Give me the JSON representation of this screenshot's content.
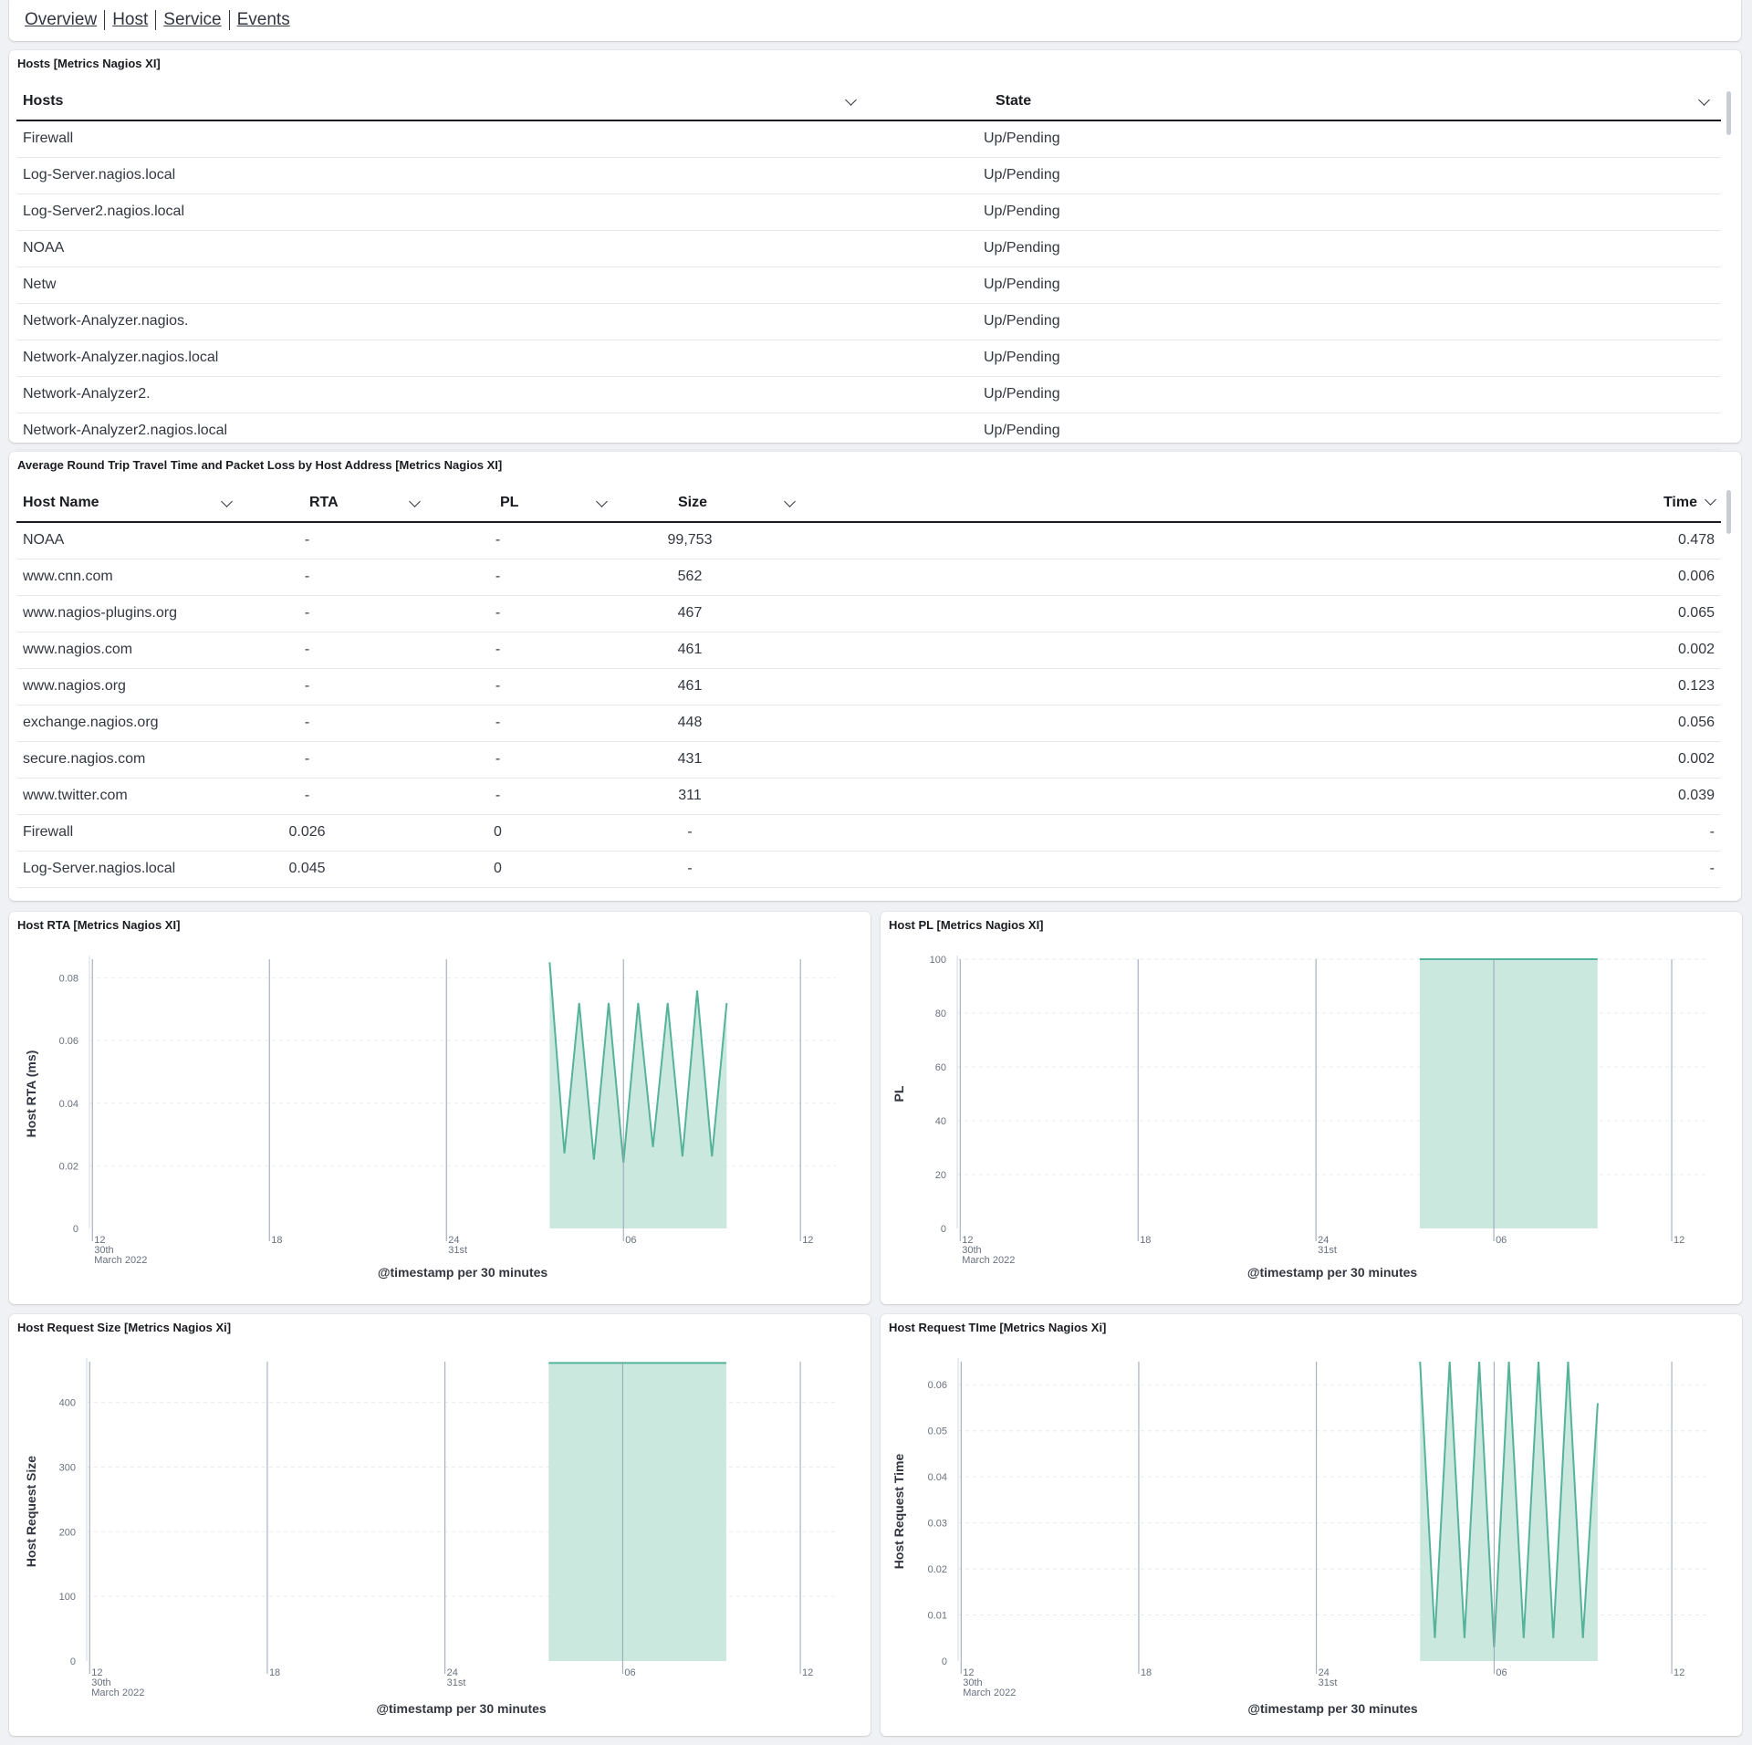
{
  "nav": {
    "links": [
      "Overview",
      "Host",
      "Service",
      "Events"
    ]
  },
  "hosts_panel": {
    "title": "Hosts [Metrics Nagios XI]",
    "columns": [
      "Hosts",
      "State"
    ],
    "rows": [
      [
        "Firewall",
        "Up/Pending"
      ],
      [
        "Log-Server.nagios.local",
        "Up/Pending"
      ],
      [
        "Log-Server2.nagios.local",
        "Up/Pending"
      ],
      [
        "NOAA",
        "Up/Pending"
      ],
      [
        "Netw",
        "Up/Pending"
      ],
      [
        "Network-Analyzer.nagios.",
        "Up/Pending"
      ],
      [
        "Network-Analyzer.nagios.local",
        "Up/Pending"
      ],
      [
        "Network-Analyzer2.",
        "Up/Pending"
      ],
      [
        "Network-Analyzer2.nagios.local",
        "Up/Pending"
      ]
    ]
  },
  "rta_panel": {
    "title": "Average Round Trip Travel Time and Packet Loss by Host Address [Metrics Nagios XI]",
    "columns": [
      "Host Name",
      "RTA",
      "PL",
      "Size",
      "Time"
    ],
    "rows": [
      [
        "NOAA",
        "-",
        "-",
        "99,753",
        "0.478"
      ],
      [
        "www.cnn.com",
        "-",
        "-",
        "562",
        "0.006"
      ],
      [
        "www.nagios-plugins.org",
        "-",
        "-",
        "467",
        "0.065"
      ],
      [
        "www.nagios.com",
        "-",
        "-",
        "461",
        "0.002"
      ],
      [
        "www.nagios.org",
        "-",
        "-",
        "461",
        "0.123"
      ],
      [
        "exchange.nagios.org",
        "-",
        "-",
        "448",
        "0.056"
      ],
      [
        "secure.nagios.com",
        "-",
        "-",
        "431",
        "0.002"
      ],
      [
        "www.twitter.com",
        "-",
        "-",
        "311",
        "0.039"
      ],
      [
        "Firewall",
        "0.026",
        "0",
        "-",
        "-"
      ],
      [
        "Log-Server.nagios.local",
        "0.045",
        "0",
        "-",
        "-"
      ]
    ]
  },
  "theme": {
    "series_color": "#54b399",
    "fill_color": "#cbe8df"
  },
  "chart_data": [
    {
      "type": "area",
      "title": "Host RTA [Metrics Nagios XI]",
      "xlabel": "@timestamp per 30 minutes",
      "ylabel": "Host RTA (ms)",
      "x_domain_hours": [
        -0.1,
        25.2
      ],
      "x_ticks": [
        {
          "h": 0,
          "label": "12",
          "sub": [
            "30th",
            "March 2022"
          ]
        },
        {
          "h": 6,
          "label": "18",
          "sub": []
        },
        {
          "h": 12,
          "label": "24",
          "sub": [
            "31st"
          ]
        },
        {
          "h": 18,
          "label": "06",
          "sub": []
        },
        {
          "h": 24,
          "label": "12",
          "sub": []
        }
      ],
      "ylim": [
        0,
        0.086
      ],
      "y_ticks": [
        0,
        0.02,
        0.04,
        0.06,
        0.08
      ],
      "y_tick_labels": [
        "0",
        "0.02",
        "0.04",
        "0.06",
        "0.08"
      ],
      "series": [
        {
          "x": [
            15.5,
            16,
            16.5,
            17,
            17.5,
            18,
            18.5,
            19,
            19.5,
            20,
            20.5,
            21,
            21.5
          ],
          "y": [
            0.085,
            0.024,
            0.072,
            0.022,
            0.072,
            0.021,
            0.072,
            0.026,
            0.072,
            0.023,
            0.076,
            0.023,
            0.072
          ]
        }
      ]
    },
    {
      "type": "area",
      "title": "Host PL [Metrics Nagios XI]",
      "xlabel": "@timestamp per 30 minutes",
      "ylabel": "PL",
      "x_domain_hours": [
        -0.1,
        25.2
      ],
      "x_ticks": [
        {
          "h": 0,
          "label": "12",
          "sub": [
            "30th",
            "March 2022"
          ]
        },
        {
          "h": 6,
          "label": "18",
          "sub": []
        },
        {
          "h": 12,
          "label": "24",
          "sub": [
            "31st"
          ]
        },
        {
          "h": 18,
          "label": "06",
          "sub": []
        },
        {
          "h": 24,
          "label": "12",
          "sub": []
        }
      ],
      "ylim": [
        0,
        100
      ],
      "y_ticks": [
        0,
        20,
        40,
        60,
        80,
        100
      ],
      "y_tick_labels": [
        "0",
        "20",
        "40",
        "60",
        "80",
        "100"
      ],
      "series": [
        {
          "x": [
            15.5,
            16,
            16.5,
            17,
            17.5,
            18,
            18.5,
            19,
            19.5,
            20,
            20.5,
            21,
            21.5
          ],
          "y": [
            100,
            100,
            100,
            100,
            100,
            100,
            100,
            100,
            100,
            100,
            100,
            100,
            100
          ]
        }
      ]
    },
    {
      "type": "area",
      "title": "Host Request Size [Metrics Nagios Xi]",
      "xlabel": "@timestamp per 30 minutes",
      "ylabel": "Host Request Size",
      "x_domain_hours": [
        -0.1,
        25.2
      ],
      "x_ticks": [
        {
          "h": 0,
          "label": "12",
          "sub": [
            "30th",
            "March 2022"
          ]
        },
        {
          "h": 6,
          "label": "18",
          "sub": []
        },
        {
          "h": 12,
          "label": "24",
          "sub": [
            "31st"
          ]
        },
        {
          "h": 18,
          "label": "06",
          "sub": []
        },
        {
          "h": 24,
          "label": "12",
          "sub": []
        }
      ],
      "ylim": [
        0,
        463
      ],
      "y_ticks": [
        0,
        100,
        200,
        300,
        400
      ],
      "y_tick_labels": [
        "0",
        "100",
        "200",
        "300",
        "400"
      ],
      "series": [
        {
          "x": [
            15.5,
            16,
            16.5,
            17,
            17.5,
            18,
            18.5,
            19,
            19.5,
            20,
            20.5,
            21,
            21.5
          ],
          "y": [
            461,
            461,
            461,
            461,
            461,
            461,
            461,
            461,
            461,
            461,
            461,
            461,
            461
          ]
        }
      ]
    },
    {
      "type": "area",
      "title": "Host Request TIme [Metrics Nagios Xi]",
      "xlabel": "@timestamp per 30 minutes",
      "ylabel": "Host Request Time",
      "x_domain_hours": [
        -0.1,
        25.2
      ],
      "x_ticks": [
        {
          "h": 0,
          "label": "12",
          "sub": [
            "30th",
            "March 2022"
          ]
        },
        {
          "h": 6,
          "label": "18",
          "sub": []
        },
        {
          "h": 12,
          "label": "24",
          "sub": [
            "31st"
          ]
        },
        {
          "h": 18,
          "label": "06",
          "sub": []
        },
        {
          "h": 24,
          "label": "12",
          "sub": []
        }
      ],
      "ylim": [
        0,
        0.065
      ],
      "y_ticks": [
        0,
        0.01,
        0.02,
        0.03,
        0.04,
        0.05,
        0.06
      ],
      "y_tick_labels": [
        "0",
        "0.01",
        "0.02",
        "0.03",
        "0.04",
        "0.05",
        "0.06"
      ],
      "series": [
        {
          "x": [
            15.5,
            16,
            16.5,
            17,
            17.5,
            18,
            18.5,
            19,
            19.5,
            20,
            20.5,
            21,
            21.5
          ],
          "y": [
            0.065,
            0.005,
            0.065,
            0.005,
            0.065,
            0.003,
            0.065,
            0.005,
            0.065,
            0.005,
            0.065,
            0.005,
            0.056
          ]
        }
      ]
    }
  ]
}
